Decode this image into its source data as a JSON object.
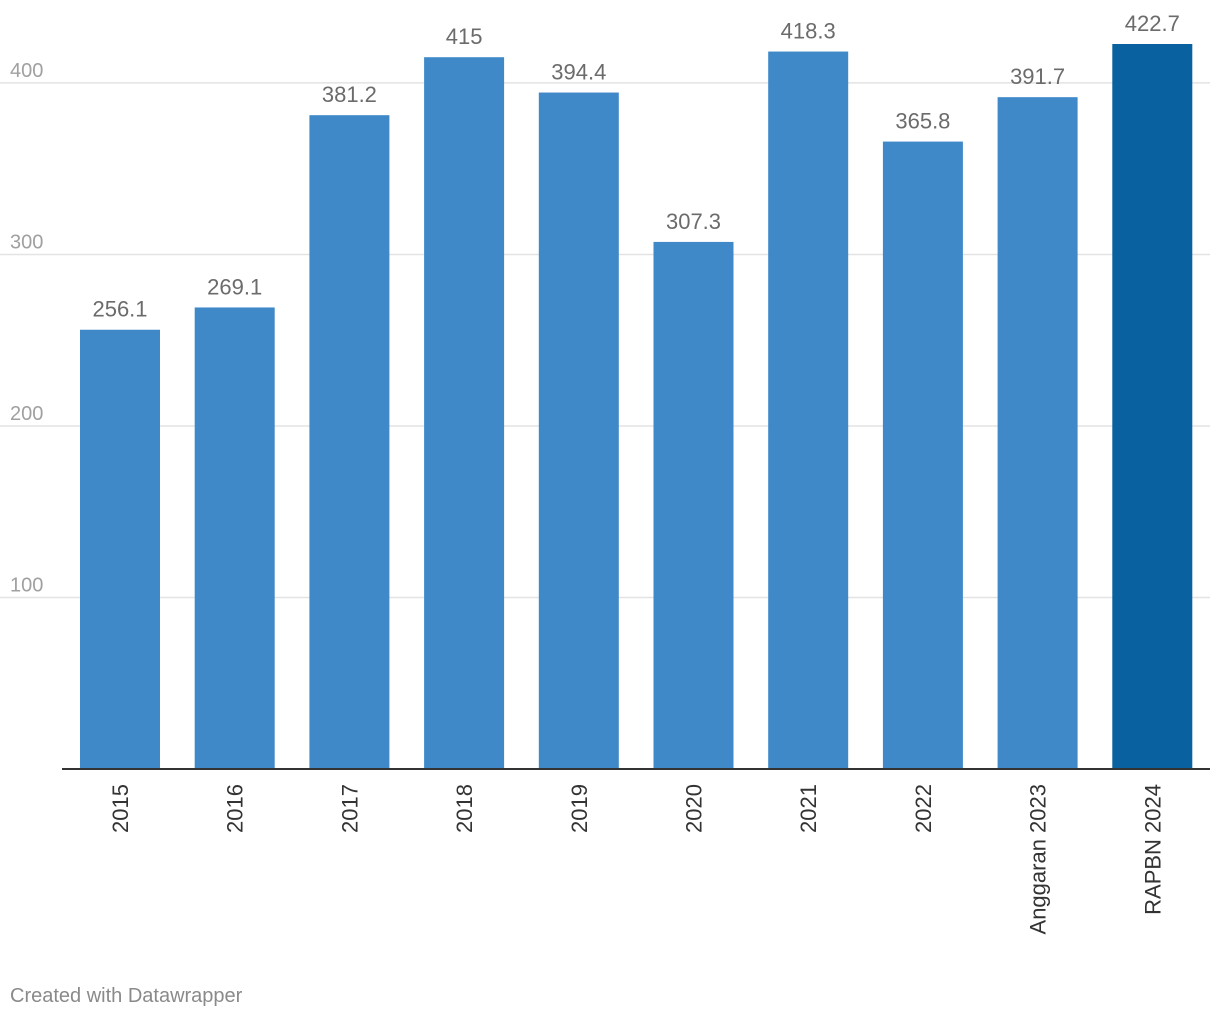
{
  "chart_data": {
    "type": "bar",
    "title": "",
    "xlabel": "",
    "ylabel": "",
    "ylim": [
      0,
      422.7
    ],
    "yticks": [
      100,
      200,
      300,
      400
    ],
    "grid": true,
    "categories": [
      "2015",
      "2016",
      "2017",
      "2018",
      "2019",
      "2020",
      "2021",
      "2022",
      "Anggaran 2023",
      "RAPBN 2024"
    ],
    "values": [
      256.1,
      269.1,
      381.2,
      415,
      394.4,
      307.3,
      418.3,
      365.8,
      391.7,
      422.7
    ],
    "value_labels": [
      "256.1",
      "269.1",
      "381.2",
      "415",
      "394.4",
      "307.3",
      "418.3",
      "365.8",
      "391.7",
      "422.7"
    ],
    "highlight_index": 9,
    "colors": {
      "bar": "#3f89c9",
      "highlight": "#09619f",
      "grid": "#e3e3e3",
      "axis": "#333333"
    }
  },
  "footer": {
    "credit": "Created with Datawrapper"
  }
}
